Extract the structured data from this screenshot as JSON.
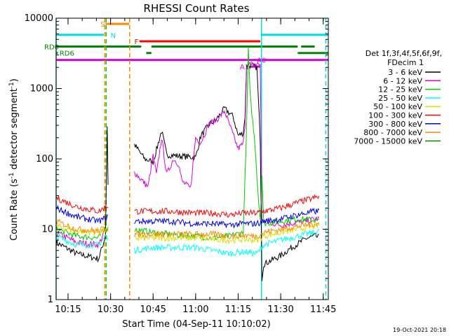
{
  "title": "RHESSI Count Rates",
  "timestamp": "19-Oct-2021 20:18",
  "chart_data": {
    "type": "line",
    "title": "RHESSI Count Rates",
    "xlabel": "Start Time (04-Sep-11 10:10:02)",
    "ylabel_parts": [
      "Count Rate (s",
      "-1",
      " detector segment",
      "-1",
      ")"
    ],
    "yscale": "log",
    "ylim": [
      1,
      10000
    ],
    "xlim_minutes": [
      10.18,
      11.78
    ],
    "x_unit": "hours",
    "xticks": [
      {
        "x": 10.25,
        "label": "10:15"
      },
      {
        "x": 10.5,
        "label": "10:30"
      },
      {
        "x": 10.75,
        "label": "10:45"
      },
      {
        "x": 11.0,
        "label": "11:00"
      },
      {
        "x": 11.25,
        "label": "11:15"
      },
      {
        "x": 11.5,
        "label": "11:30"
      },
      {
        "x": 11.75,
        "label": "11:45"
      }
    ],
    "yticks": [
      {
        "y": 1,
        "label": "1"
      },
      {
        "y": 10,
        "label": "10"
      },
      {
        "y": 100,
        "label": "100"
      },
      {
        "y": 1000,
        "label": "1000"
      },
      {
        "y": 10000,
        "label": "10000"
      }
    ],
    "legend": {
      "header": [
        "Det 1f,3f,4f,5f,6f,9f,",
        "FDecim 1"
      ],
      "placement": "right"
    },
    "series": [
      {
        "name": "3 - 6 keV",
        "color": "#000000",
        "points": [
          [
            10.18,
            6.5
          ],
          [
            10.3,
            4.5
          ],
          [
            10.43,
            3.8
          ],
          [
            10.47,
            8
          ],
          [
            10.48,
            300
          ],
          [
            10.49,
            6
          ],
          [
            10.63,
            null
          ],
          [
            10.64,
            160
          ],
          [
            10.7,
            100
          ],
          [
            10.75,
            90
          ],
          [
            10.8,
            250
          ],
          [
            10.83,
            115
          ],
          [
            10.9,
            110
          ],
          [
            11.0,
            105
          ],
          [
            11.03,
            210
          ],
          [
            11.08,
            310
          ],
          [
            11.12,
            360
          ],
          [
            11.17,
            520
          ],
          [
            11.22,
            400
          ],
          [
            11.25,
            215
          ],
          [
            11.28,
            235
          ],
          [
            11.29,
            400
          ],
          [
            11.3,
            2200
          ],
          [
            11.36,
            2000
          ],
          [
            11.38,
            180
          ],
          [
            11.39,
            2
          ],
          [
            11.4,
            3.2
          ],
          [
            11.5,
            4.2
          ],
          [
            11.55,
            5.2
          ],
          [
            11.6,
            6.2
          ],
          [
            11.65,
            7.4
          ],
          [
            11.7,
            8
          ],
          [
            11.73,
            7.5
          ]
        ]
      },
      {
        "name": "6 - 12 keV",
        "color": "#dd00dd",
        "points": [
          [
            10.18,
            9
          ],
          [
            10.3,
            6.5
          ],
          [
            10.43,
            6
          ],
          [
            10.47,
            10
          ],
          [
            10.49,
            9
          ],
          [
            10.63,
            null
          ],
          [
            10.64,
            65
          ],
          [
            10.7,
            45
          ],
          [
            10.72,
            40
          ],
          [
            10.75,
            110
          ],
          [
            10.77,
            60
          ],
          [
            10.8,
            200
          ],
          [
            10.83,
            60
          ],
          [
            10.87,
            100
          ],
          [
            10.9,
            85
          ],
          [
            10.92,
            48
          ],
          [
            10.97,
            38
          ],
          [
            11.0,
            200
          ],
          [
            11.03,
            170
          ],
          [
            11.08,
            320
          ],
          [
            11.12,
            350
          ],
          [
            11.17,
            480
          ],
          [
            11.22,
            220
          ],
          [
            11.25,
            140
          ],
          [
            11.28,
            165
          ],
          [
            11.29,
            300
          ],
          [
            11.3,
            2100
          ],
          [
            11.31,
            2200
          ],
          [
            11.36,
            2200
          ],
          [
            11.38,
            2200
          ],
          [
            11.39,
            13
          ],
          [
            11.4,
            13
          ],
          [
            11.5,
            11.5
          ],
          [
            11.55,
            12
          ],
          [
            11.6,
            12.5
          ],
          [
            11.65,
            13
          ],
          [
            11.7,
            14
          ],
          [
            11.73,
            14
          ]
        ]
      },
      {
        "name": "12 - 25 keV",
        "color": "#00cc00",
        "points": [
          [
            10.18,
            10
          ],
          [
            10.3,
            8
          ],
          [
            10.43,
            7.5
          ],
          [
            10.47,
            11
          ],
          [
            10.49,
            10
          ],
          [
            10.63,
            null
          ],
          [
            10.64,
            10
          ],
          [
            10.75,
            9
          ],
          [
            10.85,
            8.5
          ],
          [
            11.0,
            8
          ],
          [
            11.1,
            7.5
          ],
          [
            11.2,
            8
          ],
          [
            11.28,
            9
          ],
          [
            11.3,
            300
          ],
          [
            11.31,
            3800
          ],
          [
            11.32,
            800
          ],
          [
            11.35,
            150
          ],
          [
            11.37,
            25
          ],
          [
            11.38,
            14
          ],
          [
            11.39,
            60
          ],
          [
            11.4,
            12
          ],
          [
            11.5,
            13
          ],
          [
            11.6,
            14
          ],
          [
            11.7,
            13.5
          ],
          [
            11.73,
            13
          ]
        ]
      },
      {
        "name": "25 - 50 keV",
        "color": "#00ffff",
        "points": [
          [
            10.18,
            8
          ],
          [
            10.3,
            6
          ],
          [
            10.43,
            6
          ],
          [
            10.47,
            8
          ],
          [
            10.49,
            7
          ],
          [
            10.63,
            null
          ],
          [
            10.64,
            5
          ],
          [
            10.75,
            5.5
          ],
          [
            10.85,
            5.5
          ],
          [
            11.0,
            5.5
          ],
          [
            11.1,
            5
          ],
          [
            11.2,
            4.5
          ],
          [
            11.28,
            4.8
          ],
          [
            11.36,
            4.5
          ],
          [
            11.4,
            6
          ],
          [
            11.5,
            7
          ],
          [
            11.6,
            8
          ],
          [
            11.7,
            9
          ],
          [
            11.73,
            9.5
          ]
        ]
      },
      {
        "name": "50 - 100 keV",
        "color": "#dddd00",
        "points": [
          [
            10.18,
            11
          ],
          [
            10.3,
            9.5
          ],
          [
            10.43,
            9
          ],
          [
            10.49,
            10
          ],
          [
            10.63,
            null
          ],
          [
            10.64,
            7.5
          ],
          [
            10.75,
            7.5
          ],
          [
            10.85,
            7.5
          ],
          [
            11.0,
            7.5
          ],
          [
            11.1,
            7.2
          ],
          [
            11.2,
            7
          ],
          [
            11.28,
            7.2
          ],
          [
            11.36,
            7
          ],
          [
            11.4,
            8
          ],
          [
            11.5,
            9
          ],
          [
            11.6,
            10
          ],
          [
            11.7,
            11
          ],
          [
            11.73,
            11.5
          ]
        ]
      },
      {
        "name": "100 - 300 keV",
        "color": "#ff0000",
        "points": [
          [
            10.18,
            28
          ],
          [
            10.3,
            21
          ],
          [
            10.43,
            18
          ],
          [
            10.49,
            22
          ],
          [
            10.63,
            null
          ],
          [
            10.64,
            18
          ],
          [
            10.75,
            18
          ],
          [
            10.85,
            18
          ],
          [
            11.0,
            17
          ],
          [
            11.1,
            17
          ],
          [
            11.2,
            16
          ],
          [
            11.28,
            17
          ],
          [
            11.36,
            17
          ],
          [
            11.4,
            18
          ],
          [
            11.5,
            20
          ],
          [
            11.6,
            24
          ],
          [
            11.7,
            28
          ],
          [
            11.73,
            29
          ]
        ]
      },
      {
        "name": "300 - 800 keV",
        "color": "#0000ee",
        "points": [
          [
            10.18,
            20
          ],
          [
            10.3,
            15
          ],
          [
            10.43,
            13
          ],
          [
            10.49,
            15
          ],
          [
            10.63,
            null
          ],
          [
            10.64,
            13
          ],
          [
            10.75,
            13
          ],
          [
            10.85,
            13
          ],
          [
            11.0,
            12
          ],
          [
            11.1,
            12
          ],
          [
            11.2,
            11.5
          ],
          [
            11.28,
            12
          ],
          [
            11.36,
            12
          ],
          [
            11.4,
            13
          ],
          [
            11.5,
            14
          ],
          [
            11.6,
            16
          ],
          [
            11.7,
            18
          ],
          [
            11.73,
            18
          ]
        ]
      },
      {
        "name": "800 - 7000 keV",
        "color": "#ff8800",
        "points": [
          [
            10.18,
            13
          ],
          [
            10.3,
            10
          ],
          [
            10.43,
            9.5
          ],
          [
            10.49,
            11
          ],
          [
            10.63,
            null
          ],
          [
            10.64,
            8.5
          ],
          [
            10.75,
            8.5
          ],
          [
            10.85,
            8.5
          ],
          [
            11.0,
            8.5
          ],
          [
            11.1,
            8.5
          ],
          [
            11.2,
            8
          ],
          [
            11.28,
            8.2
          ],
          [
            11.36,
            8
          ],
          [
            11.4,
            9
          ],
          [
            11.5,
            10
          ],
          [
            11.6,
            11
          ],
          [
            11.7,
            12
          ],
          [
            11.73,
            12
          ]
        ]
      },
      {
        "name": "7000 - 15000 keV",
        "color": "#008800",
        "points": []
      }
    ],
    "vlines": [
      {
        "x": 10.18,
        "color": "#00dddd",
        "style": "solid"
      },
      {
        "x": 10.466,
        "color": "#ff8800",
        "style": "dashed"
      },
      {
        "x": 10.474,
        "color": "#00cc00",
        "style": "dashed"
      },
      {
        "x": 10.612,
        "color": "#ff8800",
        "style": "dashed"
      },
      {
        "x": 11.387,
        "color": "#00dddd",
        "style": "solid"
      },
      {
        "x": 11.765,
        "color": "#00dddd",
        "style": "dashed"
      }
    ],
    "flag_bars": [
      {
        "label": "S",
        "color": "#ff8800",
        "y": 8300,
        "segments": [
          [
            10.47,
            10.61
          ]
        ],
        "label_x": 10.44
      },
      {
        "label": "N",
        "color": "#00dddd",
        "y": 5800,
        "segments": [
          [
            10.18,
            10.46
          ],
          [
            11.39,
            11.78
          ]
        ],
        "label_x": 10.5
      },
      {
        "label": "F",
        "color": "#ff0000",
        "y": 4700,
        "segments": [
          [
            10.67,
            11.38
          ]
        ],
        "label_x": 10.64
      },
      {
        "label": "RD0",
        "color": "#008800",
        "y": 3950,
        "segments": [
          [
            10.18,
            10.68
          ],
          [
            10.74,
            11.6
          ],
          [
            11.62,
            11.7
          ]
        ],
        "label_x": 10.11
      },
      {
        "label": "RD6",
        "color": "#008800",
        "y": 3200,
        "segments": [
          [
            10.18,
            10.19
          ],
          [
            10.71,
            10.74
          ],
          [
            11.6,
            11.78
          ]
        ],
        "label_x": 10.2
      },
      {
        "label": "A0",
        "color": "#dd00dd",
        "y": 2550,
        "segments": [
          [
            10.18,
            11.78
          ]
        ],
        "label_x": 11.36
      },
      {
        "label": "A1",
        "color": "#dd00dd",
        "y": 2050,
        "segments": [
          [
            11.32,
            11.38
          ]
        ],
        "label_x": 11.26
      }
    ]
  }
}
